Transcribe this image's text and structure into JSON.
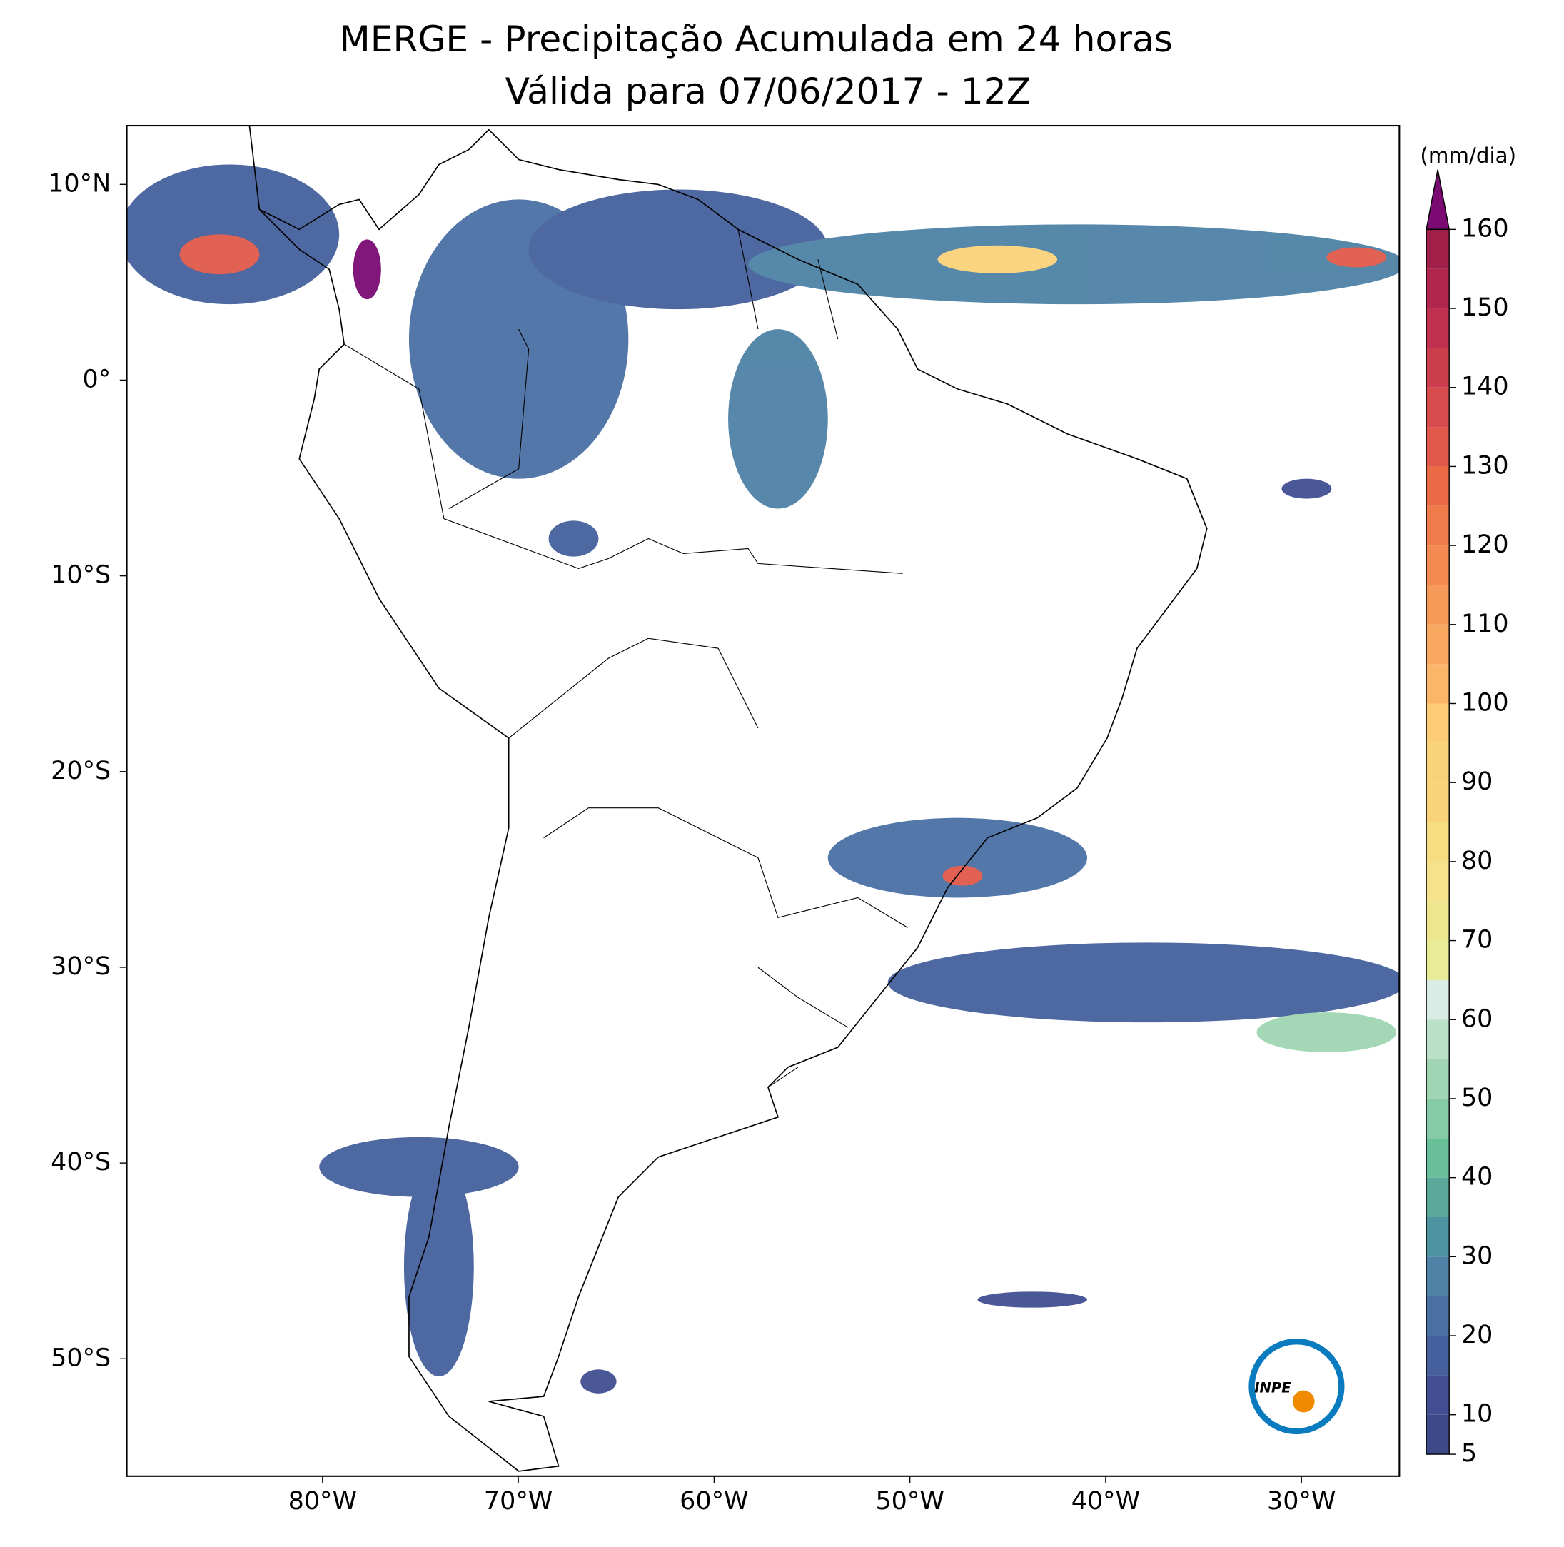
{
  "title": [
    "MERGE - Precipitação Acumulada em 24 horas",
    "Válida para 07/06/2017 - 12Z"
  ],
  "map": {
    "lon_range": [
      -90,
      -25
    ],
    "lat_range": [
      -56,
      13
    ],
    "xticks": [
      {
        "value": -80,
        "label": "80°W"
      },
      {
        "value": -70,
        "label": "70°W"
      },
      {
        "value": -60,
        "label": "60°W"
      },
      {
        "value": -50,
        "label": "50°W"
      },
      {
        "value": -40,
        "label": "40°W"
      },
      {
        "value": -30,
        "label": "30°W"
      }
    ],
    "yticks": [
      {
        "value": 10,
        "label": "10°N"
      },
      {
        "value": 0,
        "label": "0°"
      },
      {
        "value": -10,
        "label": "10°S"
      },
      {
        "value": -20,
        "label": "20°S"
      },
      {
        "value": -30,
        "label": "30°S"
      },
      {
        "value": -40,
        "label": "40°S"
      },
      {
        "value": -50,
        "label": "50°S"
      }
    ]
  },
  "colorbar": {
    "label": "(mm/dia)",
    "range": [
      5,
      160
    ],
    "ticks": [
      5,
      10,
      20,
      30,
      40,
      50,
      60,
      70,
      80,
      90,
      100,
      110,
      120,
      130,
      140,
      150,
      160
    ],
    "levels": [
      5,
      10,
      15,
      20,
      25,
      30,
      35,
      40,
      45,
      50,
      55,
      60,
      65,
      70,
      75,
      80,
      85,
      90,
      95,
      100,
      105,
      110,
      115,
      120,
      125,
      130,
      135,
      140,
      145,
      150,
      155,
      160
    ],
    "colors": [
      "#3e4989",
      "#414f92",
      "#45609c",
      "#4a70a4",
      "#4e82a6",
      "#4d94a0",
      "#5aa89a",
      "#6abf9b",
      "#85cba6",
      "#9fd5b3",
      "#bbe2c9",
      "#d9ece6",
      "#e8ec96",
      "#eee68e",
      "#f4e38a",
      "#f7dd82",
      "#f9d27a",
      "#fad27a",
      "#fccd76",
      "#fbb66a",
      "#f9a862",
      "#f69a5a",
      "#f48a52",
      "#ef7a4a",
      "#e96a45",
      "#e0594a",
      "#d84b4d",
      "#cc3e4e",
      "#c0314f",
      "#b0264d",
      "#a0204a"
    ],
    "extend_color": "#7b0b73"
  },
  "logo": {
    "text": "INPE"
  }
}
